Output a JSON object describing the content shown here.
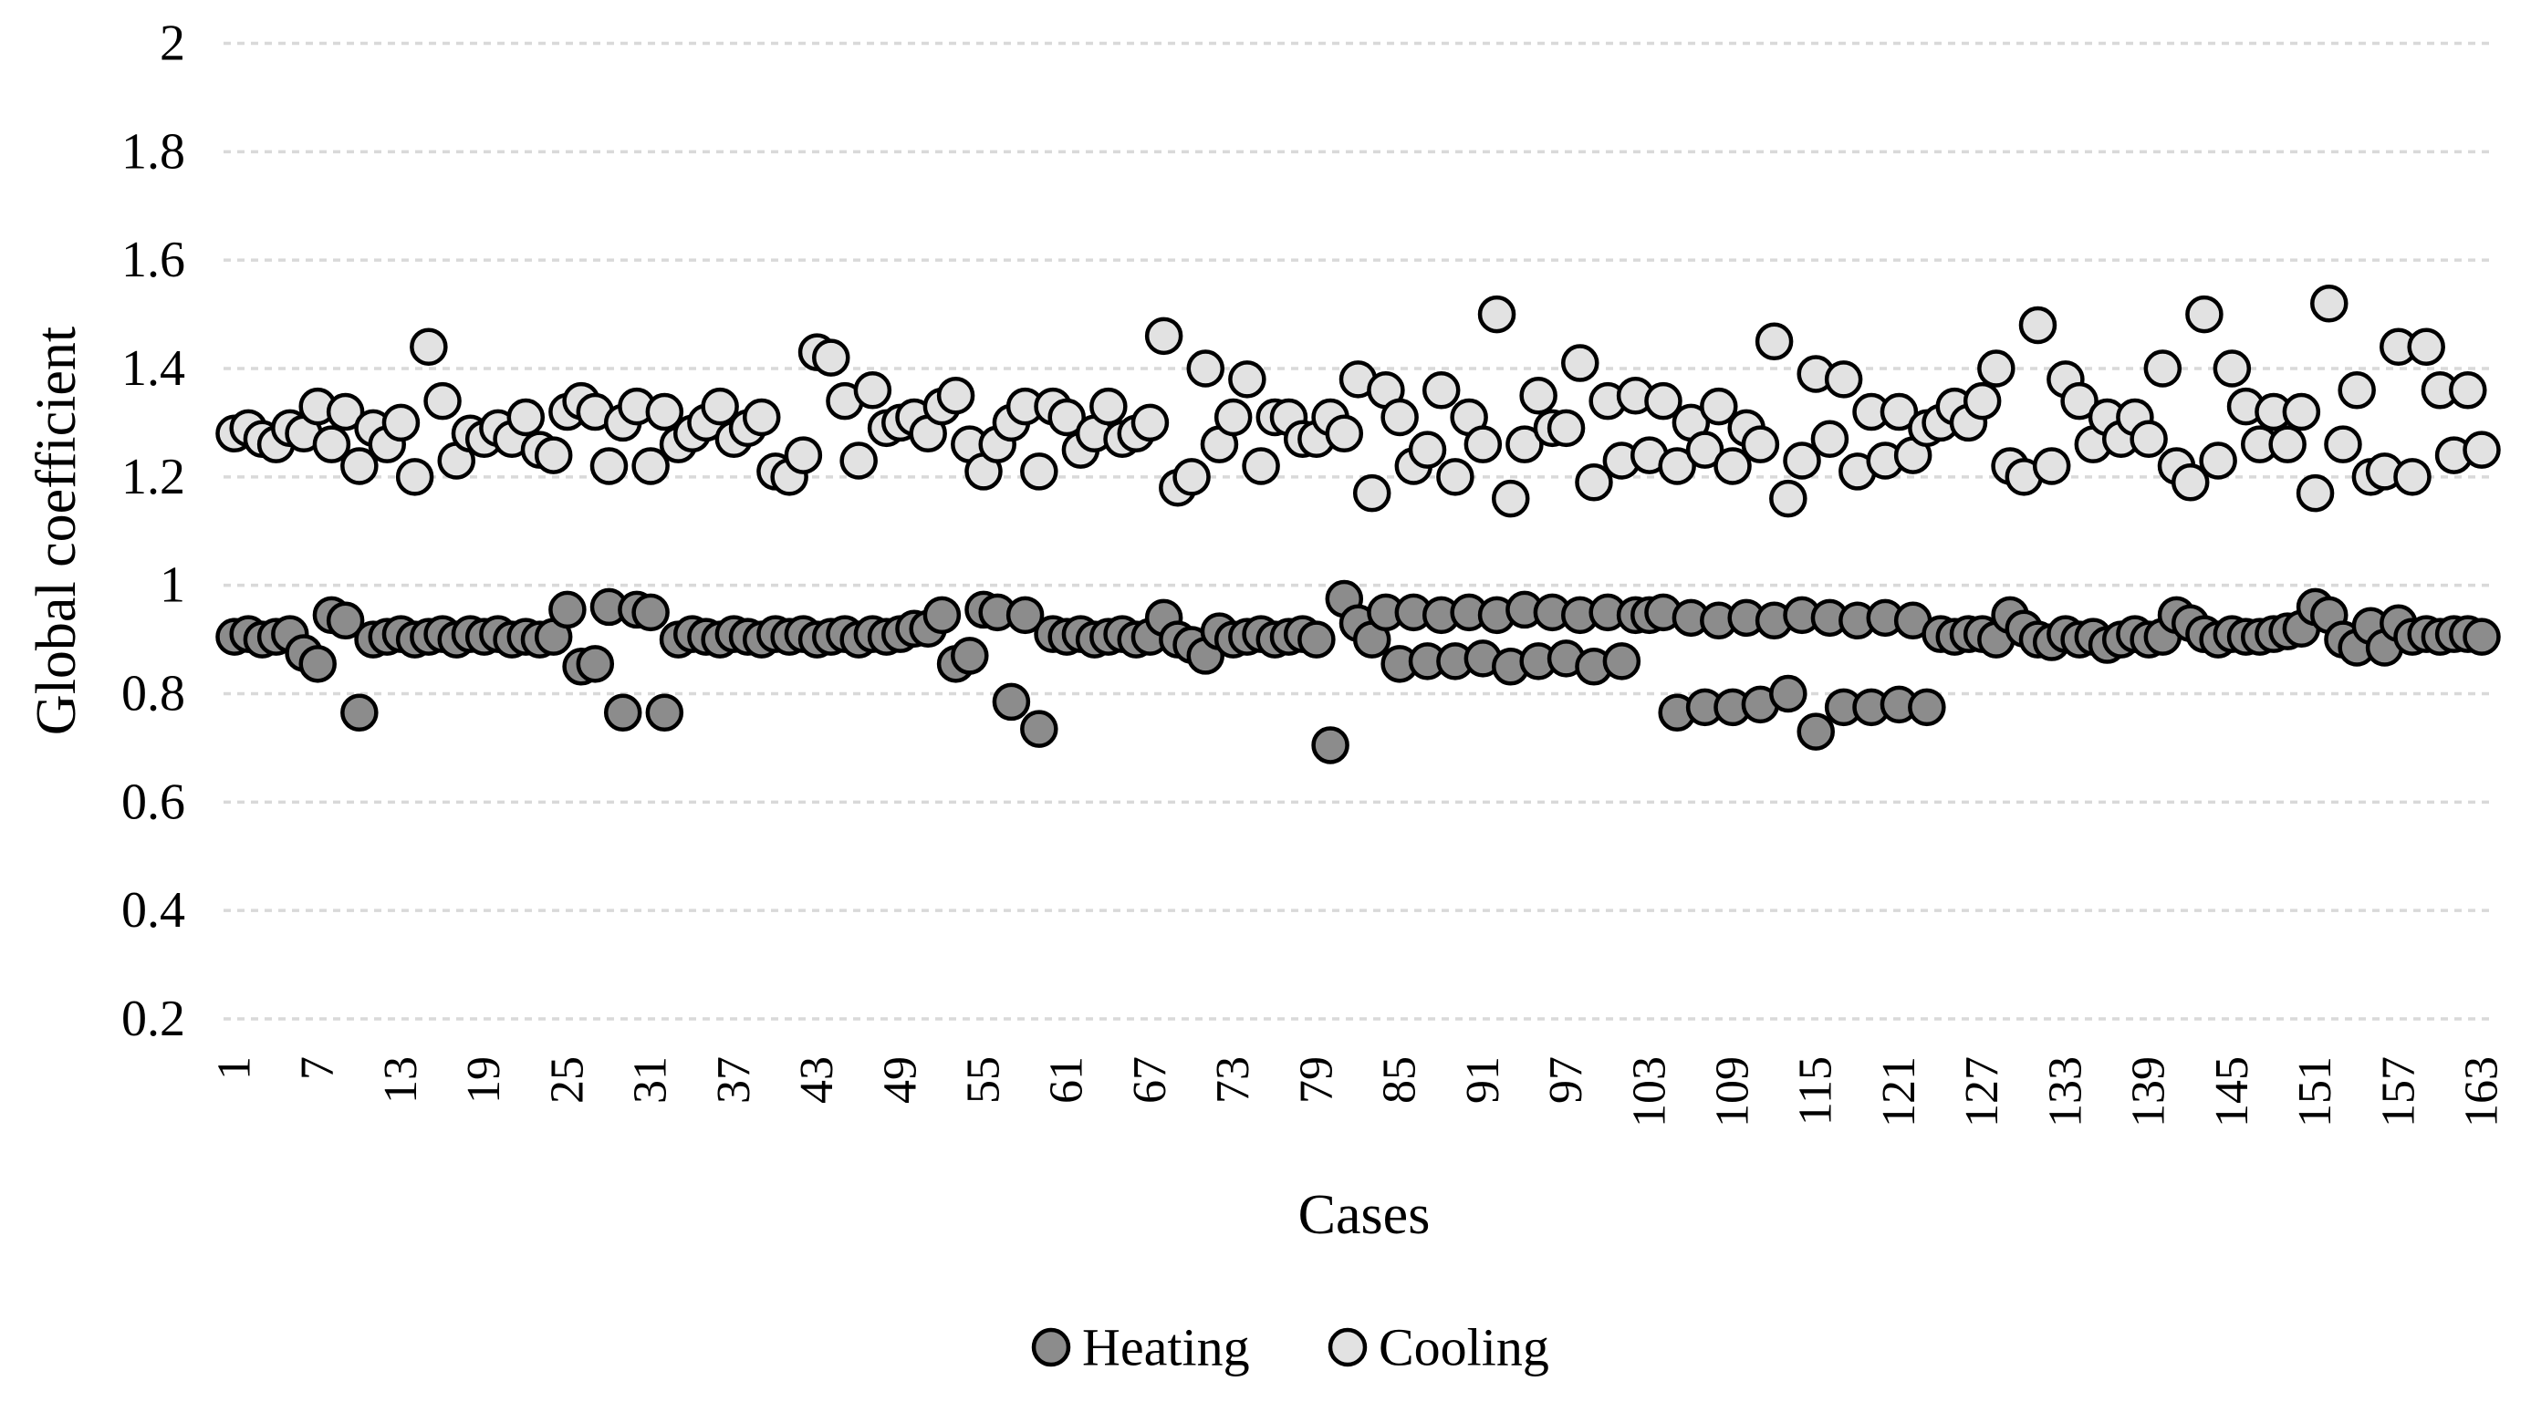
{
  "chart_data": {
    "type": "scatter",
    "title": "",
    "xlabel": "Cases",
    "ylabel": "Global coefficient",
    "n_cases": 163,
    "ylim": [
      0.2,
      2
    ],
    "grid": {
      "show": true,
      "color": "#d9d9d9"
    },
    "legend_position": "bottom",
    "marker": {
      "stroke": "#000000",
      "radius_px": 18.5,
      "stroke_width_px": 4.5
    },
    "y_ticks": {
      "values": [
        0.2,
        0.4,
        0.6,
        0.8,
        1,
        1.2,
        1.4,
        1.6,
        1.8,
        2
      ],
      "labels": [
        "0.2",
        "0.4",
        "0.6",
        "0.8",
        "1",
        "1.2",
        "1.4",
        "1.6",
        "1.8",
        "2"
      ]
    },
    "x_tick_labels": [
      1,
      7,
      13,
      19,
      25,
      31,
      37,
      43,
      49,
      55,
      61,
      67,
      73,
      79,
      85,
      91,
      97,
      103,
      109,
      115,
      121,
      127,
      133,
      139,
      145,
      151,
      157,
      163
    ],
    "series": [
      {
        "name": "Heating",
        "color": "#8c8c8c",
        "values": [
          0.905,
          0.91,
          0.9,
          0.905,
          0.91,
          0.875,
          0.855,
          0.945,
          0.935,
          0.765,
          0.9,
          0.905,
          0.91,
          0.9,
          0.905,
          0.91,
          0.9,
          0.91,
          0.905,
          0.91,
          0.9,
          0.905,
          0.9,
          0.905,
          0.955,
          0.85,
          0.855,
          0.96,
          0.765,
          0.955,
          0.95,
          0.765,
          0.9,
          0.91,
          0.905,
          0.9,
          0.91,
          0.905,
          0.9,
          0.91,
          0.905,
          0.91,
          0.9,
          0.905,
          0.91,
          0.9,
          0.91,
          0.905,
          0.91,
          0.92,
          0.92,
          0.945,
          0.855,
          0.87,
          0.955,
          0.95,
          0.785,
          0.945,
          0.735,
          0.91,
          0.905,
          0.91,
          0.9,
          0.905,
          0.91,
          0.9,
          0.905,
          0.94,
          0.9,
          0.89,
          0.87,
          0.915,
          0.9,
          0.905,
          0.91,
          0.9,
          0.905,
          0.91,
          0.9,
          0.705,
          0.975,
          0.93,
          0.9,
          0.95,
          0.855,
          0.95,
          0.86,
          0.945,
          0.86,
          0.95,
          0.865,
          0.945,
          0.85,
          0.955,
          0.86,
          0.95,
          0.865,
          0.945,
          0.85,
          0.95,
          0.86,
          0.945,
          0.945,
          0.95,
          0.765,
          0.94,
          0.775,
          0.935,
          0.775,
          0.94,
          0.78,
          0.935,
          0.8,
          0.945,
          0.73,
          0.94,
          0.775,
          0.935,
          0.775,
          0.94,
          0.78,
          0.935,
          0.775,
          0.91,
          0.905,
          0.91,
          0.91,
          0.9,
          0.945,
          0.92,
          0.9,
          0.895,
          0.91,
          0.9,
          0.905,
          0.89,
          0.9,
          0.91,
          0.9,
          0.905,
          0.945,
          0.93,
          0.91,
          0.9,
          0.91,
          0.905,
          0.905,
          0.91,
          0.915,
          0.92,
          0.96,
          0.945,
          0.9,
          0.885,
          0.925,
          0.885,
          0.93,
          0.905,
          0.91,
          0.905,
          0.91,
          0.91,
          0.905
        ]
      },
      {
        "name": "Cooling",
        "color": "#e2e2e2",
        "values": [
          1.28,
          1.29,
          1.27,
          1.26,
          1.29,
          1.28,
          1.33,
          1.26,
          1.32,
          1.22,
          1.29,
          1.26,
          1.3,
          1.2,
          1.44,
          1.34,
          1.23,
          1.28,
          1.27,
          1.29,
          1.27,
          1.31,
          1.25,
          1.24,
          1.32,
          1.34,
          1.32,
          1.22,
          1.3,
          1.33,
          1.22,
          1.32,
          1.26,
          1.28,
          1.3,
          1.33,
          1.27,
          1.29,
          1.31,
          1.21,
          1.2,
          1.24,
          1.43,
          1.42,
          1.34,
          1.23,
          1.36,
          1.29,
          1.3,
          1.31,
          1.28,
          1.33,
          1.35,
          1.26,
          1.21,
          1.26,
          1.3,
          1.33,
          1.21,
          1.33,
          1.31,
          1.25,
          1.28,
          1.33,
          1.27,
          1.28,
          1.3,
          1.46,
          1.18,
          1.2,
          1.4,
          1.26,
          1.31,
          1.38,
          1.22,
          1.31,
          1.31,
          1.27,
          1.27,
          1.31,
          1.28,
          1.38,
          1.17,
          1.36,
          1.31,
          1.22,
          1.25,
          1.36,
          1.2,
          1.31,
          1.26,
          1.5,
          1.16,
          1.26,
          1.35,
          1.29,
          1.29,
          1.41,
          1.19,
          1.34,
          1.23,
          1.35,
          1.24,
          1.34,
          1.22,
          1.3,
          1.25,
          1.33,
          1.22,
          1.29,
          1.26,
          1.45,
          1.16,
          1.23,
          1.39,
          1.27,
          1.38,
          1.21,
          1.32,
          1.23,
          1.32,
          1.24,
          1.29,
          1.3,
          1.33,
          1.3,
          1.34,
          1.4,
          1.22,
          1.2,
          1.48,
          1.22,
          1.38,
          1.34,
          1.26,
          1.31,
          1.27,
          1.31,
          1.27,
          1.4,
          1.22,
          1.19,
          1.5,
          1.23,
          1.4,
          1.33,
          1.26,
          1.32,
          1.26,
          1.32,
          1.17,
          1.52,
          1.26,
          1.36,
          1.2,
          1.21,
          1.44,
          1.2,
          1.44,
          1.36,
          1.24,
          1.36,
          1.25
        ]
      }
    ]
  }
}
